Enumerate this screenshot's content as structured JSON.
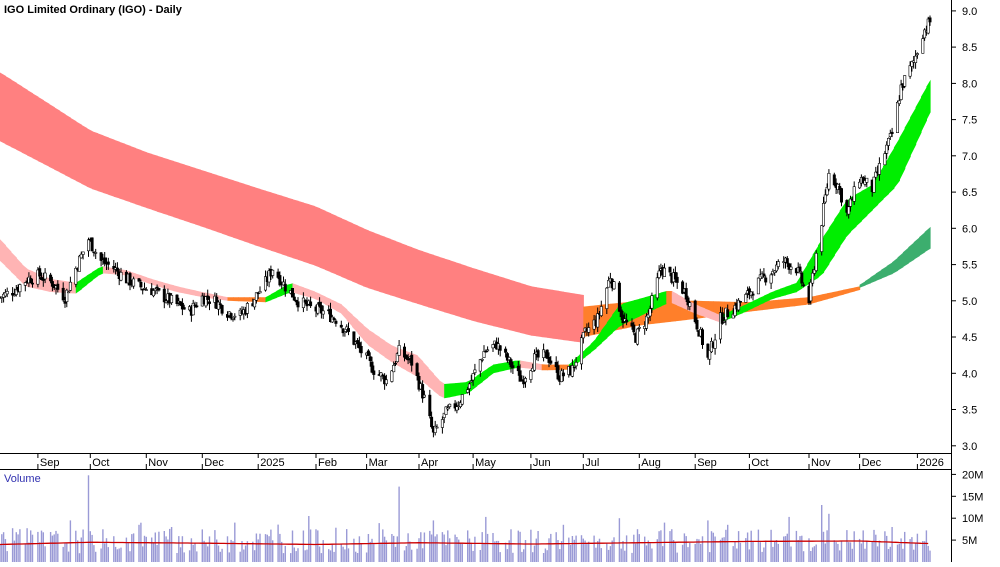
{
  "chart_data": [
    {
      "type": "candlestick",
      "title": "IGO Limited Ordinary (IGO) - Daily",
      "y_axis_position": "right",
      "ylim": [
        2.9,
        9.15
      ],
      "yticks": [
        3.0,
        3.5,
        4.0,
        4.5,
        5.0,
        5.5,
        6.0,
        6.5,
        7.0,
        7.5,
        8.0,
        8.5,
        9.0
      ],
      "ytick_labels": [
        "3.0",
        "3.5",
        "4.0",
        "4.5",
        "5.0",
        "5.5",
        "6.0",
        "6.5",
        "7.0",
        "7.5",
        "8.0",
        "8.5",
        "9.0"
      ],
      "x_range": [
        "2024-08-12",
        "2026-01-09"
      ],
      "x_ticks": [
        {
          "date": "2024-09-02",
          "label": "Sep"
        },
        {
          "date": "2024-10-01",
          "label": "Oct"
        },
        {
          "date": "2024-11-01",
          "label": "Nov"
        },
        {
          "date": "2024-12-02",
          "label": "Dec"
        },
        {
          "date": "2025-01-02",
          "label": "2025"
        },
        {
          "date": "2025-02-03",
          "label": "Feb"
        },
        {
          "date": "2025-03-03",
          "label": "Mar"
        },
        {
          "date": "2025-04-01",
          "label": "Apr"
        },
        {
          "date": "2025-05-01",
          "label": "May"
        },
        {
          "date": "2025-06-02",
          "label": "Jun"
        },
        {
          "date": "2025-07-01",
          "label": "Jul"
        },
        {
          "date": "2025-08-01",
          "label": "Aug"
        },
        {
          "date": "2025-09-01",
          "label": "Sep"
        },
        {
          "date": "2025-10-01",
          "label": "Oct"
        },
        {
          "date": "2025-11-03",
          "label": "Nov"
        },
        {
          "date": "2025-12-01",
          "label": "Dec"
        },
        {
          "date": "2026-01-02",
          "label": "2026"
        }
      ],
      "price_path": [
        [
          "2024-08-12",
          5.05
        ],
        [
          "2024-08-20",
          5.15
        ],
        [
          "2024-08-27",
          5.3
        ],
        [
          "2024-09-03",
          5.35
        ],
        [
          "2024-09-10",
          5.25
        ],
        [
          "2024-09-17",
          5.05
        ],
        [
          "2024-09-23",
          5.45
        ],
        [
          "2024-09-30",
          5.85
        ],
        [
          "2024-10-07",
          5.55
        ],
        [
          "2024-10-14",
          5.45
        ],
        [
          "2024-10-21",
          5.3
        ],
        [
          "2024-10-28",
          5.2
        ],
        [
          "2024-11-04",
          5.15
        ],
        [
          "2024-11-11",
          5.05
        ],
        [
          "2024-11-18",
          4.95
        ],
        [
          "2024-11-25",
          4.85
        ],
        [
          "2024-12-02",
          5.05
        ],
        [
          "2024-12-09",
          5.0
        ],
        [
          "2024-12-16",
          4.85
        ],
        [
          "2024-12-23",
          4.8
        ],
        [
          "2024-12-30",
          5.0
        ],
        [
          "2025-01-06",
          5.25
        ],
        [
          "2025-01-10",
          5.45
        ],
        [
          "2025-01-17",
          5.2
        ],
        [
          "2025-01-24",
          5.0
        ],
        [
          "2025-01-31",
          4.9
        ],
        [
          "2025-02-07",
          4.85
        ],
        [
          "2025-02-14",
          4.75
        ],
        [
          "2025-02-21",
          4.55
        ],
        [
          "2025-02-28",
          4.3
        ],
        [
          "2025-03-07",
          4.05
        ],
        [
          "2025-03-14",
          3.9
        ],
        [
          "2025-03-21",
          4.3
        ],
        [
          "2025-03-28",
          4.15
        ],
        [
          "2025-04-04",
          3.65
        ],
        [
          "2025-04-09",
          3.15
        ],
        [
          "2025-04-16",
          3.45
        ],
        [
          "2025-04-23",
          3.6
        ],
        [
          "2025-04-30",
          3.9
        ],
        [
          "2025-05-07",
          4.3
        ],
        [
          "2025-05-14",
          4.4
        ],
        [
          "2025-05-21",
          4.15
        ],
        [
          "2025-05-28",
          3.9
        ],
        [
          "2025-06-04",
          4.2
        ],
        [
          "2025-06-11",
          4.25
        ],
        [
          "2025-06-18",
          3.95
        ],
        [
          "2025-06-25",
          4.05
        ],
        [
          "2025-07-02",
          4.55
        ],
        [
          "2025-07-09",
          4.75
        ],
        [
          "2025-07-16",
          5.35
        ],
        [
          "2025-07-23",
          4.75
        ],
        [
          "2025-07-30",
          4.5
        ],
        [
          "2025-08-06",
          4.8
        ],
        [
          "2025-08-13",
          5.45
        ],
        [
          "2025-08-20",
          5.3
        ],
        [
          "2025-08-27",
          5.1
        ],
        [
          "2025-09-03",
          4.6
        ],
        [
          "2025-09-08",
          4.2
        ],
        [
          "2025-09-15",
          4.75
        ],
        [
          "2025-09-22",
          4.9
        ],
        [
          "2025-09-29",
          5.05
        ],
        [
          "2025-10-06",
          5.25
        ],
        [
          "2025-10-13",
          5.4
        ],
        [
          "2025-10-20",
          5.55
        ],
        [
          "2025-10-27",
          5.45
        ],
        [
          "2025-11-03",
          5.0
        ],
        [
          "2025-11-06",
          5.5
        ],
        [
          "2025-11-10",
          6.1
        ],
        [
          "2025-11-14",
          6.75
        ],
        [
          "2025-11-19",
          6.6
        ],
        [
          "2025-11-24",
          6.2
        ],
        [
          "2025-12-01",
          6.7
        ],
        [
          "2025-12-08",
          6.55
        ],
        [
          "2025-12-15",
          7.05
        ],
        [
          "2025-12-19",
          7.3
        ],
        [
          "2025-12-24",
          7.95
        ],
        [
          "2025-12-31",
          8.3
        ],
        [
          "2026-01-05",
          8.7
        ],
        [
          "2026-01-09",
          8.85
        ]
      ],
      "moving_average_bands": [
        {
          "colors": {
            "rising": "#ff8080",
            "falling": "#ff8080"
          },
          "upper": [
            [
              "2024-08-12",
              8.15
            ],
            [
              "2024-10-01",
              7.35
            ],
            [
              "2024-11-01",
              7.05
            ],
            [
              "2024-12-02",
              6.8
            ],
            [
              "2025-01-02",
              6.55
            ],
            [
              "2025-02-03",
              6.3
            ],
            [
              "2025-03-03",
              5.98
            ],
            [
              "2025-04-01",
              5.7
            ],
            [
              "2025-05-01",
              5.45
            ],
            [
              "2025-06-02",
              5.2
            ],
            [
              "2025-07-01",
              5.08
            ]
          ],
          "lower": [
            [
              "2024-08-12",
              7.2
            ],
            [
              "2024-10-01",
              6.55
            ],
            [
              "2024-11-01",
              6.28
            ],
            [
              "2024-12-02",
              6.02
            ],
            [
              "2025-01-02",
              5.75
            ],
            [
              "2025-02-03",
              5.48
            ],
            [
              "2025-03-03",
              5.18
            ],
            [
              "2025-04-01",
              4.95
            ],
            [
              "2025-05-01",
              4.72
            ],
            [
              "2025-06-02",
              4.52
            ],
            [
              "2025-07-01",
              4.42
            ]
          ]
        },
        {
          "colors": {
            "rising": "#ff7f2a",
            "falling": "#ff7f2a"
          },
          "upper": [
            [
              "2025-07-01",
              4.92
            ],
            [
              "2025-08-01",
              5.0
            ],
            [
              "2025-09-01",
              5.0
            ],
            [
              "2025-10-01",
              4.98
            ],
            [
              "2025-11-03",
              5.05
            ],
            [
              "2025-12-01",
              5.2
            ]
          ],
          "lower": [
            [
              "2025-07-01",
              4.5
            ],
            [
              "2025-08-01",
              4.66
            ],
            [
              "2025-09-01",
              4.75
            ],
            [
              "2025-10-01",
              4.85
            ],
            [
              "2025-11-03",
              4.95
            ],
            [
              "2025-12-01",
              5.15
            ]
          ]
        },
        {
          "colors": {
            "rising": "#3cae6e",
            "falling": "#3cae6e"
          },
          "upper": [
            [
              "2025-12-01",
              5.22
            ],
            [
              "2025-12-20",
              5.55
            ],
            [
              "2026-01-09",
              6.02
            ]
          ],
          "lower": [
            [
              "2025-12-01",
              5.18
            ],
            [
              "2025-12-20",
              5.38
            ],
            [
              "2026-01-09",
              5.72
            ]
          ]
        },
        {
          "colors": {
            "rising": "#00ee00",
            "falling": "#ffb4b4",
            "neutral": "#ff7f2a"
          },
          "upper": [
            [
              "2024-08-12",
              5.85
            ],
            [
              "2024-08-26",
              5.45
            ],
            [
              "2024-09-09",
              5.3
            ],
            [
              "2024-09-23",
              5.25
            ],
            [
              "2024-10-07",
              5.48
            ],
            [
              "2024-10-21",
              5.42
            ],
            [
              "2024-11-04",
              5.3
            ],
            [
              "2024-11-18",
              5.2
            ],
            [
              "2024-12-02",
              5.12
            ],
            [
              "2024-12-16",
              5.05
            ],
            [
              "2025-01-06",
              5.05
            ],
            [
              "2025-01-20",
              5.25
            ],
            [
              "2025-02-03",
              5.12
            ],
            [
              "2025-02-17",
              4.95
            ],
            [
              "2025-03-03",
              4.62
            ],
            [
              "2025-03-17",
              4.38
            ],
            [
              "2025-03-31",
              4.25
            ],
            [
              "2025-04-14",
              3.85
            ],
            [
              "2025-04-28",
              3.88
            ],
            [
              "2025-05-12",
              4.12
            ],
            [
              "2025-05-26",
              4.18
            ],
            [
              "2025-06-09",
              4.12
            ],
            [
              "2025-06-23",
              4.12
            ],
            [
              "2025-07-07",
              4.45
            ],
            [
              "2025-07-21",
              4.95
            ],
            [
              "2025-08-04",
              5.05
            ],
            [
              "2025-08-18",
              5.15
            ],
            [
              "2025-09-01",
              4.95
            ],
            [
              "2025-09-15",
              4.8
            ],
            [
              "2025-09-29",
              4.95
            ],
            [
              "2025-10-13",
              5.12
            ],
            [
              "2025-10-27",
              5.25
            ],
            [
              "2025-11-10",
              5.85
            ],
            [
              "2025-11-24",
              6.4
            ],
            [
              "2025-12-08",
              6.6
            ],
            [
              "2025-12-22",
              7.2
            ],
            [
              "2026-01-09",
              8.05
            ]
          ],
          "lower": [
            [
              "2024-08-12",
              5.55
            ],
            [
              "2024-08-26",
              5.2
            ],
            [
              "2024-09-09",
              5.12
            ],
            [
              "2024-09-23",
              5.1
            ],
            [
              "2024-10-07",
              5.38
            ],
            [
              "2024-10-21",
              5.35
            ],
            [
              "2024-11-04",
              5.22
            ],
            [
              "2024-11-18",
              5.12
            ],
            [
              "2024-12-02",
              5.05
            ],
            [
              "2024-12-16",
              5.0
            ],
            [
              "2025-01-06",
              4.98
            ],
            [
              "2025-01-20",
              5.12
            ],
            [
              "2025-02-03",
              5.02
            ],
            [
              "2025-02-17",
              4.82
            ],
            [
              "2025-03-03",
              4.4
            ],
            [
              "2025-03-17",
              4.15
            ],
            [
              "2025-03-31",
              3.95
            ],
            [
              "2025-04-14",
              3.65
            ],
            [
              "2025-04-28",
              3.72
            ],
            [
              "2025-05-12",
              4.0
            ],
            [
              "2025-05-26",
              4.08
            ],
            [
              "2025-06-09",
              4.04
            ],
            [
              "2025-06-23",
              4.05
            ],
            [
              "2025-07-07",
              4.32
            ],
            [
              "2025-07-21",
              4.65
            ],
            [
              "2025-08-04",
              4.82
            ],
            [
              "2025-08-18",
              4.98
            ],
            [
              "2025-09-01",
              4.82
            ],
            [
              "2025-09-15",
              4.7
            ],
            [
              "2025-09-29",
              4.85
            ],
            [
              "2025-10-13",
              5.02
            ],
            [
              "2025-10-27",
              5.12
            ],
            [
              "2025-11-10",
              5.35
            ],
            [
              "2025-11-24",
              5.9
            ],
            [
              "2025-12-08",
              6.25
            ],
            [
              "2025-12-22",
              6.6
            ],
            [
              "2026-01-09",
              7.6
            ]
          ]
        }
      ]
    },
    {
      "type": "bar",
      "title": "Volume",
      "y_axis_position": "right",
      "ylim": [
        0,
        21000000
      ],
      "yticks": [
        5000000,
        10000000,
        15000000,
        20000000
      ],
      "ytick_labels": [
        "5M",
        "10M",
        "15M",
        "20M"
      ],
      "spikes": [
        [
          "2024-09-20",
          9.5
        ],
        [
          "2024-09-30",
          19.8
        ],
        [
          "2024-10-28",
          8.5
        ],
        [
          "2024-11-15",
          8.0
        ],
        [
          "2024-12-20",
          9.0
        ],
        [
          "2025-01-30",
          10.5
        ],
        [
          "2025-02-20",
          7.5
        ],
        [
          "2025-03-21",
          17.2
        ],
        [
          "2025-04-09",
          9.5
        ],
        [
          "2025-06-20",
          8.5
        ],
        [
          "2025-07-21",
          10.0
        ],
        [
          "2025-08-15",
          9.0
        ],
        [
          "2025-09-08",
          9.5
        ],
        [
          "2025-09-19",
          8.5
        ],
        [
          "2025-10-23",
          10.3
        ],
        [
          "2025-11-10",
          13.0
        ],
        [
          "2025-11-14",
          11.0
        ],
        [
          "2025-12-19",
          8.0
        ]
      ],
      "moving_average": {
        "color": "#cc0000",
        "values": [
          [
            "2024-08-12",
            4.0
          ],
          [
            "2024-10-01",
            4.5
          ],
          [
            "2024-12-02",
            4.3
          ],
          [
            "2025-02-03",
            4.0
          ],
          [
            "2025-04-01",
            4.4
          ],
          [
            "2025-06-02",
            4.1
          ],
          [
            "2025-08-01",
            4.4
          ],
          [
            "2025-10-01",
            4.7
          ],
          [
            "2025-12-01",
            4.8
          ],
          [
            "2026-01-09",
            4.2
          ]
        ]
      },
      "bar_color": "#9a9ad6"
    }
  ]
}
